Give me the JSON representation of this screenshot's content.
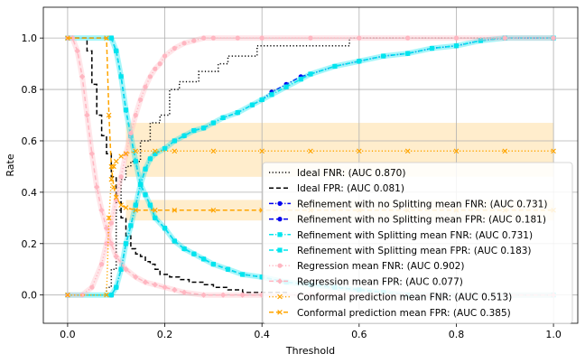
{
  "chart_data": {
    "type": "line",
    "title": "",
    "xlabel": "Threshold",
    "ylabel": "Rate",
    "xlim": [
      -0.05,
      1.05
    ],
    "ylim": [
      -0.11,
      1.12
    ],
    "xticks": [
      0.0,
      0.2,
      0.4,
      0.6,
      0.8,
      1.0
    ],
    "xtick_labels": [
      "0.0",
      "0.2",
      "0.4",
      "0.6",
      "0.8",
      "1.0"
    ],
    "yticks": [
      0.0,
      0.2,
      0.4,
      0.6,
      0.8,
      1.0
    ],
    "ytick_labels": [
      "0.0",
      "0.2",
      "0.4",
      "0.6",
      "0.8",
      "1.0"
    ],
    "grid": true,
    "legend_position": "bottom-right",
    "series": [
      {
        "name": "Ideal FNR: (AUC 0.870)",
        "color": "#000000",
        "style": "dotted",
        "marker": "none",
        "x": [
          0,
          0.05,
          0.08,
          0.09,
          0.1,
          0.11,
          0.12,
          0.13,
          0.15,
          0.17,
          0.19,
          0.21,
          0.23,
          0.27,
          0.31,
          0.33,
          0.36,
          0.39,
          0.41,
          0.57,
          0.58,
          0.63,
          0.66,
          0.74,
          0.8,
          0.87,
          1.0
        ],
        "y": [
          0,
          0,
          0.03,
          0.1,
          0.33,
          0.45,
          0.5,
          0.52,
          0.6,
          0.67,
          0.7,
          0.8,
          0.83,
          0.87,
          0.9,
          0.93,
          0.93,
          0.97,
          0.97,
          0.97,
          1.0,
          1.0,
          1.0,
          1.0,
          1.0,
          1.0,
          1.0
        ]
      },
      {
        "name": "Ideal FPR: (AUC 0.081)",
        "color": "#000000",
        "style": "dashed",
        "marker": "none",
        "x": [
          0,
          0.03,
          0.04,
          0.05,
          0.06,
          0.07,
          0.08,
          0.09,
          0.1,
          0.11,
          0.12,
          0.13,
          0.14,
          0.15,
          0.16,
          0.17,
          0.18,
          0.19,
          0.21,
          0.23,
          0.25,
          0.28,
          0.3,
          0.33,
          0.36,
          0.4,
          0.45,
          0.5,
          1.0
        ],
        "y": [
          1.0,
          1.0,
          0.95,
          0.82,
          0.7,
          0.62,
          0.55,
          0.46,
          0.36,
          0.3,
          0.23,
          0.18,
          0.16,
          0.15,
          0.13,
          0.12,
          0.1,
          0.08,
          0.07,
          0.06,
          0.05,
          0.04,
          0.03,
          0.02,
          0.01,
          0.01,
          0.0,
          0.0,
          0.0
        ]
      },
      {
        "name": "Refinement with no Splitting mean FNR: (AUC 0.731)",
        "color": "#0000ee",
        "style": "dashdot",
        "marker": "circle",
        "x": [
          0,
          0.09,
          0.1,
          0.11,
          0.12,
          0.13,
          0.14,
          0.15,
          0.16,
          0.17,
          0.18,
          0.2,
          0.22,
          0.24,
          0.26,
          0.28,
          0.3,
          0.32,
          0.35,
          0.38,
          0.4,
          0.42,
          0.45,
          0.48,
          0.5,
          0.55,
          0.6,
          0.65,
          0.7,
          0.75,
          0.8,
          0.85,
          0.9,
          1.0
        ],
        "y": [
          0,
          0,
          0.03,
          0.1,
          0.2,
          0.27,
          0.35,
          0.43,
          0.49,
          0.53,
          0.55,
          0.57,
          0.6,
          0.62,
          0.64,
          0.65,
          0.67,
          0.69,
          0.71,
          0.74,
          0.76,
          0.79,
          0.82,
          0.85,
          0.86,
          0.89,
          0.91,
          0.93,
          0.94,
          0.96,
          0.97,
          0.99,
          1.0,
          1.0
        ]
      },
      {
        "name": "Refinement with no Splitting mean FPR: (AUC 0.181)",
        "color": "#0000ee",
        "style": "dashed",
        "marker": "circle",
        "x": [
          0,
          0.09,
          0.1,
          0.11,
          0.12,
          0.13,
          0.14,
          0.15,
          0.16,
          0.17,
          0.18,
          0.2,
          0.22,
          0.24,
          0.26,
          0.28,
          0.3,
          0.33,
          0.36,
          0.4,
          0.45,
          0.5,
          0.55,
          0.6,
          0.65,
          0.7,
          1.0
        ],
        "y": [
          1.0,
          1.0,
          0.95,
          0.85,
          0.72,
          0.62,
          0.52,
          0.43,
          0.39,
          0.35,
          0.3,
          0.26,
          0.21,
          0.18,
          0.16,
          0.14,
          0.12,
          0.1,
          0.08,
          0.07,
          0.05,
          0.04,
          0.03,
          0.02,
          0.01,
          0.0,
          0.0
        ]
      },
      {
        "name": "Refinement with Splitting mean FNR: (AUC 0.731)",
        "color": "#00e5ee",
        "style": "dashdot",
        "marker": "square",
        "x": [
          0,
          0.09,
          0.1,
          0.11,
          0.12,
          0.13,
          0.14,
          0.15,
          0.16,
          0.17,
          0.18,
          0.2,
          0.22,
          0.24,
          0.26,
          0.28,
          0.3,
          0.32,
          0.35,
          0.38,
          0.4,
          0.42,
          0.45,
          0.48,
          0.5,
          0.55,
          0.6,
          0.65,
          0.7,
          0.75,
          0.8,
          0.85,
          0.9,
          1.0
        ],
        "y": [
          0,
          0,
          0.03,
          0.1,
          0.2,
          0.27,
          0.35,
          0.43,
          0.49,
          0.53,
          0.55,
          0.57,
          0.6,
          0.62,
          0.64,
          0.65,
          0.67,
          0.69,
          0.71,
          0.74,
          0.76,
          0.78,
          0.81,
          0.84,
          0.86,
          0.89,
          0.91,
          0.93,
          0.94,
          0.96,
          0.97,
          0.99,
          1.0,
          1.0
        ]
      },
      {
        "name": "Refinement with Splitting mean FPR: (AUC 0.183)",
        "color": "#00e5ee",
        "style": "dashed",
        "marker": "square",
        "x": [
          0,
          0.09,
          0.1,
          0.11,
          0.12,
          0.13,
          0.14,
          0.15,
          0.16,
          0.17,
          0.18,
          0.2,
          0.22,
          0.24,
          0.26,
          0.28,
          0.3,
          0.33,
          0.36,
          0.4,
          0.45,
          0.5,
          0.55,
          0.6,
          0.65,
          0.7,
          1.0
        ],
        "y": [
          1.0,
          1.0,
          0.95,
          0.85,
          0.72,
          0.62,
          0.52,
          0.43,
          0.39,
          0.35,
          0.3,
          0.26,
          0.21,
          0.18,
          0.16,
          0.14,
          0.12,
          0.1,
          0.08,
          0.07,
          0.05,
          0.04,
          0.03,
          0.02,
          0.01,
          0.0,
          0.0
        ]
      },
      {
        "name": "Regression mean FNR: (AUC 0.902)",
        "color": "#ffb6c1",
        "style": "dotted",
        "marker": "circle",
        "x": [
          0,
          0.03,
          0.05,
          0.07,
          0.08,
          0.09,
          0.1,
          0.11,
          0.12,
          0.13,
          0.14,
          0.15,
          0.16,
          0.17,
          0.18,
          0.19,
          0.2,
          0.22,
          0.24,
          0.26,
          0.28,
          0.3,
          0.35,
          0.4,
          0.5,
          0.6,
          0.7,
          0.8,
          0.9,
          1.0
        ],
        "y": [
          0,
          0,
          0.03,
          0.12,
          0.2,
          0.28,
          0.37,
          0.46,
          0.55,
          0.63,
          0.7,
          0.76,
          0.81,
          0.85,
          0.88,
          0.9,
          0.93,
          0.96,
          0.98,
          0.99,
          1.0,
          1.0,
          1.0,
          1.0,
          1.0,
          1.0,
          1.0,
          1.0,
          1.0,
          1.0
        ]
      },
      {
        "name": "Regression mean FPR: (AUC 0.077)",
        "color": "#ffb6c1",
        "style": "dashed",
        "marker": "diamond",
        "x": [
          0,
          0.01,
          0.02,
          0.03,
          0.04,
          0.05,
          0.06,
          0.07,
          0.08,
          0.09,
          0.1,
          0.12,
          0.14,
          0.16,
          0.18,
          0.2,
          0.22,
          0.24,
          0.28,
          0.32,
          0.36,
          0.4,
          0.5,
          1.0
        ],
        "y": [
          1.0,
          1.0,
          0.95,
          0.85,
          0.7,
          0.55,
          0.42,
          0.33,
          0.26,
          0.2,
          0.15,
          0.1,
          0.07,
          0.05,
          0.04,
          0.03,
          0.02,
          0.01,
          0.0,
          0.0,
          0.0,
          0.0,
          0.0,
          0.0
        ]
      },
      {
        "name": "Conformal prediction mean FNR: (AUC 0.513)",
        "color": "#ffa500",
        "style": "dotted",
        "marker": "x",
        "x": [
          0,
          0.08,
          0.085,
          0.09,
          0.095,
          0.1,
          0.11,
          0.12,
          0.14,
          0.18,
          0.22,
          0.3,
          0.4,
          0.5,
          0.6,
          0.7,
          0.8,
          0.9,
          1.0
        ],
        "y": [
          0,
          0,
          0.3,
          0.45,
          0.5,
          0.52,
          0.54,
          0.55,
          0.56,
          0.56,
          0.56,
          0.56,
          0.56,
          0.56,
          0.56,
          0.56,
          0.56,
          0.56,
          0.56
        ]
      },
      {
        "name": "Conformal prediction mean FPR: (AUC 0.385)",
        "color": "#ffa500",
        "style": "dashed",
        "marker": "x",
        "x": [
          0,
          0.08,
          0.085,
          0.09,
          0.095,
          0.1,
          0.11,
          0.12,
          0.14,
          0.18,
          0.22,
          0.3,
          0.4,
          0.5,
          0.6,
          0.7,
          0.8,
          0.9,
          1.0
        ],
        "y": [
          1.0,
          1.0,
          0.7,
          0.5,
          0.42,
          0.38,
          0.35,
          0.34,
          0.33,
          0.33,
          0.33,
          0.33,
          0.33,
          0.33,
          0.33,
          0.33,
          0.33,
          0.33,
          0.33
        ]
      }
    ],
    "bands": [
      {
        "name": "Conformal prediction FNR band",
        "color": "#ffa500",
        "x_start": 0.12,
        "x_end": 1.0,
        "y_low": 0.46,
        "y_high": 0.67
      },
      {
        "name": "Conformal prediction FPR band",
        "color": "#ffa500",
        "x_start": 0.12,
        "x_end": 1.0,
        "y_low": 0.29,
        "y_high": 0.37
      }
    ]
  }
}
